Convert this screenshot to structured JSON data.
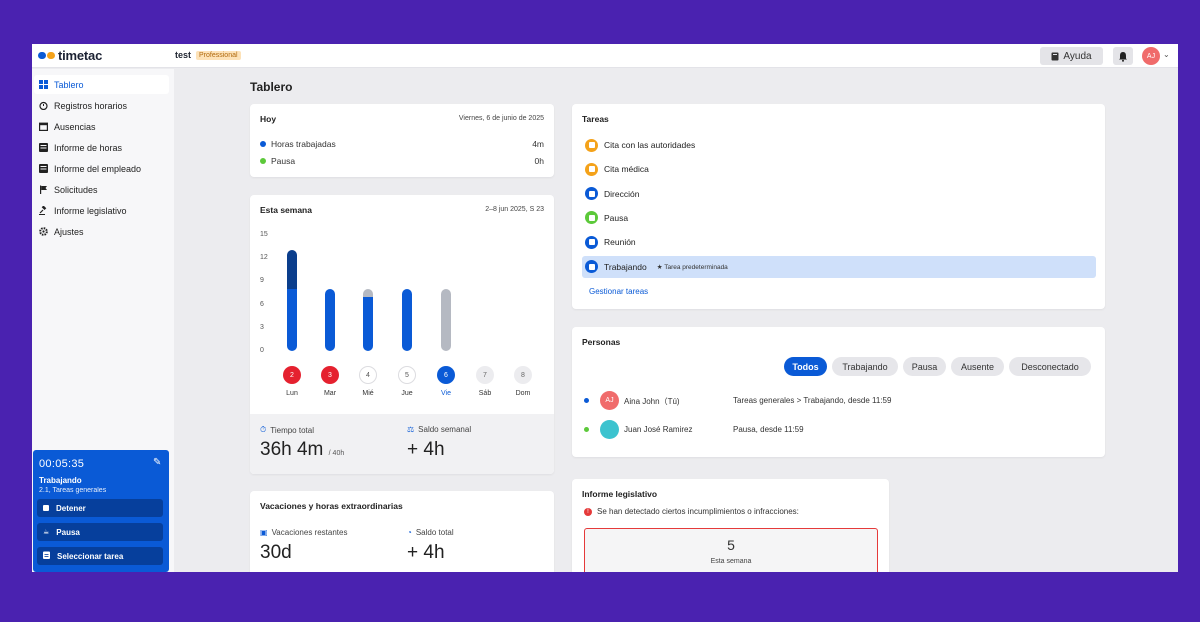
{
  "topbar": {
    "brand": "timetac",
    "org_name": "test",
    "plan": "Professional",
    "help_label": "Ayuda",
    "avatar_initials": "AJ"
  },
  "sidebar": {
    "items": [
      {
        "label": "Tablero",
        "icon": "grid-icon",
        "active": true
      },
      {
        "label": "Registros horarios",
        "icon": "stopwatch-icon"
      },
      {
        "label": "Ausencias",
        "icon": "calendar-icon"
      },
      {
        "label": "Informe de horas",
        "icon": "table-icon"
      },
      {
        "label": "Informe del empleado",
        "icon": "table-icon"
      },
      {
        "label": "Solicitudes",
        "icon": "flag-icon"
      },
      {
        "label": "Informe legislativo",
        "icon": "gavel-icon"
      },
      {
        "label": "Ajustes",
        "icon": "gear-icon"
      }
    ],
    "timer": {
      "time": "00:05:35",
      "status": "Trabajando",
      "sub": "2.1, Tareas generales",
      "buttons": [
        "Detener",
        "Pausa",
        "Seleccionar tarea"
      ]
    }
  },
  "page_title": "Tablero",
  "today": {
    "title": "Hoy",
    "date": "Viernes, 6 de junio de 2025",
    "rows": [
      {
        "label": "Horas trabajadas",
        "value": "4m",
        "color": "#0a5ad6"
      },
      {
        "label": "Pausa",
        "value": "0h",
        "color": "#5cc93a"
      }
    ]
  },
  "week": {
    "title": "Esta semana",
    "range": "2–8 jun 2025, S 23",
    "y_ticks": [
      "15",
      "12",
      "9",
      "6",
      "3",
      "0"
    ],
    "total_label": "Tiempo total",
    "total_value": "36h 4m",
    "total_of": "/ 40h",
    "balance_label": "Saldo semanal",
    "balance_value": "+ 4h"
  },
  "chart_data": {
    "type": "bar",
    "categories": [
      "Lun",
      "Mar",
      "Mié",
      "Jue",
      "Vie",
      "Sáb",
      "Dom"
    ],
    "day_numbers": [
      "2",
      "3",
      "4",
      "5",
      "6",
      "7",
      "8"
    ],
    "ylim": [
      0,
      15
    ],
    "yticks": [
      0,
      3,
      6,
      9,
      12,
      15
    ],
    "series": [
      {
        "values": [
          8,
          8,
          7,
          8,
          0,
          0,
          0
        ],
        "color": "#0a5ad6"
      },
      {
        "values": [
          5,
          0,
          0,
          0,
          0,
          0,
          0
        ],
        "color": "#0b3e8c"
      },
      {
        "values": [
          0,
          0,
          1,
          0,
          8,
          0,
          0
        ],
        "color": "#b5b9c2"
      }
    ],
    "day_styles": [
      "alert",
      "alert",
      "plain",
      "plain",
      "today",
      "muted",
      "muted"
    ]
  },
  "vacations": {
    "title": "Vacaciones y horas extraordinarias",
    "remaining_label": "Vacaciones restantes",
    "remaining_value": "30d",
    "total_label": "Saldo total",
    "total_value": "+ 4h"
  },
  "tasks": {
    "title": "Tareas",
    "items": [
      {
        "label": "Cita con las autoridades",
        "color": "#f4a21a"
      },
      {
        "label": "Cita médica",
        "color": "#f4a21a"
      },
      {
        "label": "Dirección",
        "color": "#0a5ad6"
      },
      {
        "label": "Pausa",
        "color": "#5cc93a"
      },
      {
        "label": "Reunión",
        "color": "#0a5ad6"
      },
      {
        "label": "Trabajando",
        "color": "#0a5ad6",
        "note": "★ Tarea predeterminada"
      }
    ],
    "manage_label": "Gestionar tareas"
  },
  "persons": {
    "title": "Personas",
    "filters": [
      "Todos",
      "Trabajando",
      "Pausa",
      "Ausente",
      "Desconectado"
    ],
    "people": [
      {
        "initials": "AJ",
        "name": "Aina John（Tú)",
        "status": "Tareas generales > Trabajando, desde 11:59",
        "avatar_color": "#f06b6b",
        "dot": "#0a5ad6"
      },
      {
        "initials": "",
        "name": "Juan José Ramirez",
        "status": "Pausa, desde 11:59",
        "avatar_color": "#3cc3cf",
        "dot": "#5cc93a"
      }
    ]
  },
  "legal": {
    "title": "Informe legislativo",
    "warning": "Se han detectado ciertos incumplimientos o infracciones:",
    "count": "5",
    "count_label": "Esta semana"
  }
}
